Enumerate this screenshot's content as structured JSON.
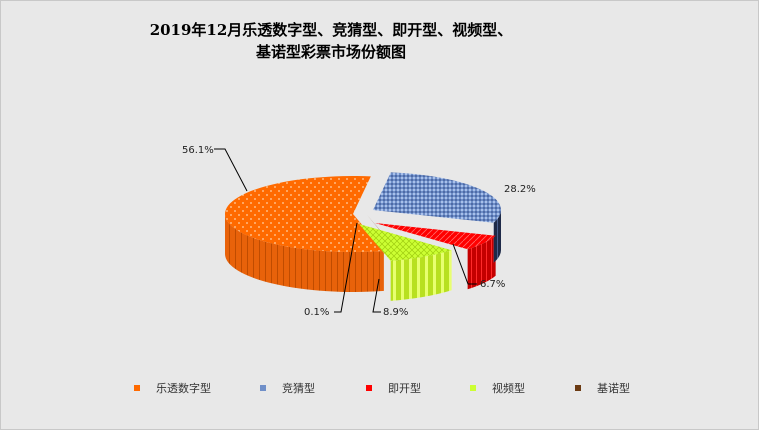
{
  "title_lines": [
    "2019年12月乐透数字型、竞猜型、即开型、视频型、",
    "基诺型彩票市场份额图"
  ],
  "chart_data": {
    "type": "pie",
    "categories": [
      "乐透数字型",
      "竞猜型",
      "即开型",
      "视频型",
      "基诺型"
    ],
    "values": [
      56.1,
      28.2,
      6.7,
      8.9,
      0.1
    ],
    "value_labels": [
      "56.1%",
      "28.2%",
      "6.7%",
      "8.9%",
      "0.1%"
    ],
    "legend_position": "bottom",
    "colors": [
      "#ff6a00",
      "#6f8fc8",
      "#ff0000",
      "#ccff33",
      "#6b3a12"
    ],
    "side_colors": [
      "#b84a00",
      "#1e2a48",
      "#8a0000",
      "#a6c018",
      "#3a1f08"
    ]
  }
}
